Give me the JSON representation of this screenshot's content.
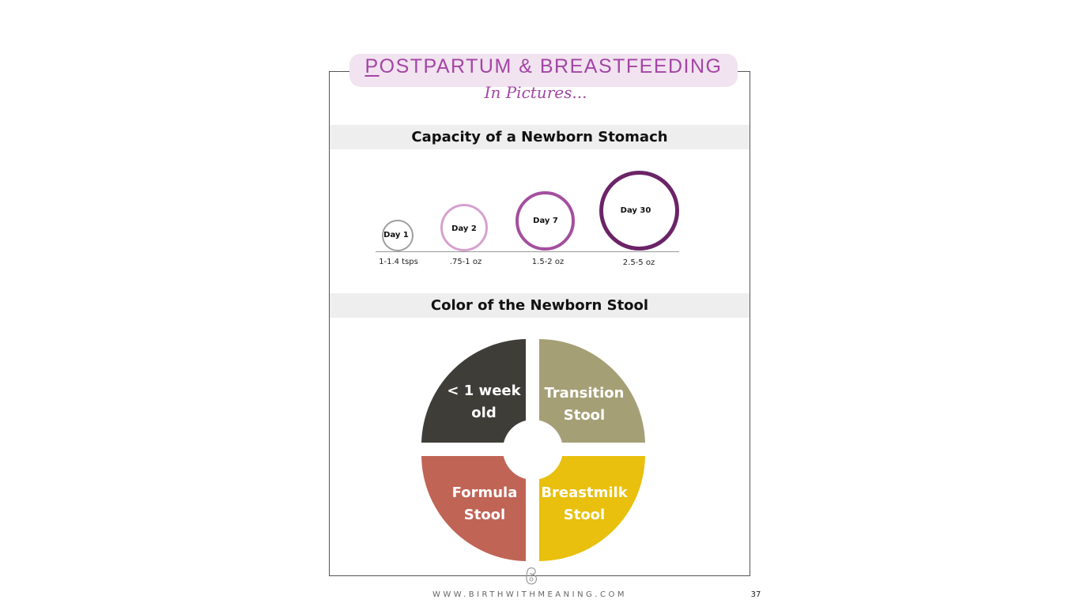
{
  "header": {
    "title_first": "P",
    "title_rest": "OSTPARTUM & BREASTFEEDING",
    "subtitle": "In Pictures..."
  },
  "stomach_section": {
    "heading": "Capacity of a Newborn Stomach",
    "items": [
      {
        "label": "Day 1",
        "amount": "1-1.4 tsps",
        "color": "#9e9e9e"
      },
      {
        "label": "Day 2",
        "amount": ".75-1 oz",
        "color": "#d6a1cf"
      },
      {
        "label": "Day 7",
        "amount": "1.5-2 oz",
        "color": "#a44f9e"
      },
      {
        "label": "Day 30",
        "amount": "2.5-5 oz",
        "color": "#6b2467"
      }
    ]
  },
  "stool_section": {
    "heading": "Color of the Newborn Stool",
    "quadrants": [
      {
        "line1": "< 1 week",
        "line2": "old",
        "color": "#3f3d38"
      },
      {
        "line1": "Transition",
        "line2": "Stool",
        "color": "#a59f76"
      },
      {
        "line1": "Formula",
        "line2": "Stool",
        "color": "#c06456"
      },
      {
        "line1": "Breastmilk",
        "line2": "Stool",
        "color": "#e8c00d"
      }
    ]
  },
  "footer": {
    "website": "WWW.BIRTHWITHMEANING.COM",
    "page_number": "37"
  },
  "colors": {
    "accent": "#a445a6",
    "pill_bg": "#f1e3ef",
    "section_bg": "#eeeeee"
  }
}
